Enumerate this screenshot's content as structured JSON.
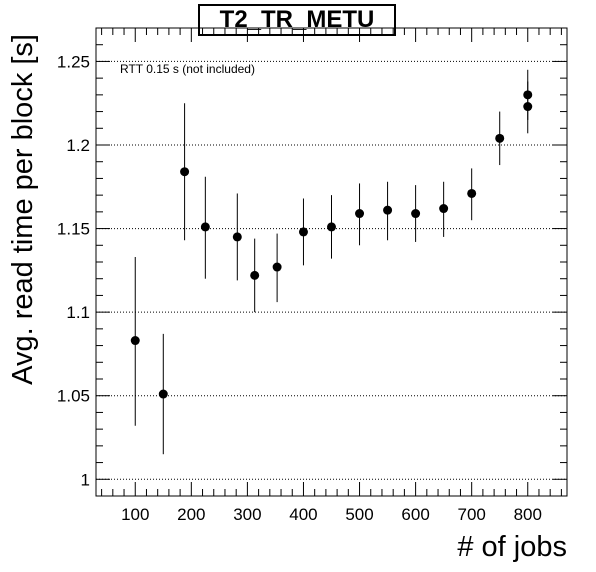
{
  "chart_data": {
    "type": "scatter",
    "title": "T2_TR_METU",
    "xlabel": "# of jobs",
    "ylabel": "Avg. read time per block [s]",
    "annotation": "RTT 0.15 s (not included)",
    "xlim": [
      30,
      870
    ],
    "ylim": [
      0.99,
      1.27
    ],
    "x_ticks": [
      "100",
      "200",
      "300",
      "400",
      "500",
      "600",
      "700",
      "800"
    ],
    "y_ticks": [
      "1",
      "1.05",
      "1.1",
      "1.15",
      "1.2",
      "1.25"
    ],
    "grid_y": true,
    "points": [
      {
        "x": 100,
        "y": 1.083,
        "low": 1.032,
        "high": 1.133
      },
      {
        "x": 150,
        "y": 1.051,
        "low": 1.015,
        "high": 1.087
      },
      {
        "x": 188,
        "y": 1.184,
        "low": 1.143,
        "high": 1.225
      },
      {
        "x": 225,
        "y": 1.151,
        "low": 1.12,
        "high": 1.181
      },
      {
        "x": 282,
        "y": 1.145,
        "low": 1.119,
        "high": 1.171
      },
      {
        "x": 313,
        "y": 1.122,
        "low": 1.1,
        "high": 1.144
      },
      {
        "x": 353,
        "y": 1.127,
        "low": 1.106,
        "high": 1.147
      },
      {
        "x": 400,
        "y": 1.148,
        "low": 1.128,
        "high": 1.168
      },
      {
        "x": 450,
        "y": 1.151,
        "low": 1.132,
        "high": 1.17
      },
      {
        "x": 500,
        "y": 1.159,
        "low": 1.14,
        "high": 1.177
      },
      {
        "x": 550,
        "y": 1.161,
        "low": 1.143,
        "high": 1.178
      },
      {
        "x": 600,
        "y": 1.159,
        "low": 1.142,
        "high": 1.176
      },
      {
        "x": 650,
        "y": 1.162,
        "low": 1.145,
        "high": 1.178
      },
      {
        "x": 700,
        "y": 1.171,
        "low": 1.155,
        "high": 1.186
      },
      {
        "x": 750,
        "y": 1.204,
        "low": 1.188,
        "high": 1.22
      },
      {
        "x": 800,
        "y": 1.23,
        "low": 1.215,
        "high": 1.245
      },
      {
        "x": 800,
        "y": 1.223,
        "low": 1.207,
        "high": 1.238
      }
    ]
  }
}
